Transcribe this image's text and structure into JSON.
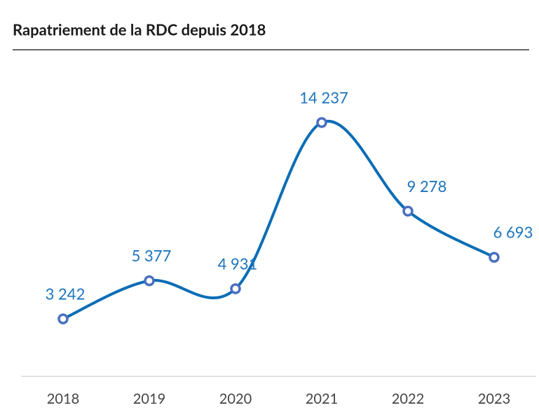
{
  "chart_data": {
    "type": "line",
    "title": "Rapatriement de la RDC depuis 2018",
    "categories": [
      "2018",
      "2019",
      "2020",
      "2021",
      "2022",
      "2023"
    ],
    "values": [
      3242,
      5377,
      4931,
      14237,
      9278,
      6693
    ],
    "value_labels": [
      "3 242",
      "5 377",
      "4 931",
      "14 237",
      "9 278",
      "6 693"
    ],
    "color": "#0a6db5",
    "marker_color": "#4a6fc0",
    "label_color": "#1b74bd",
    "ylim": [
      0,
      16000
    ],
    "smooth": true
  }
}
